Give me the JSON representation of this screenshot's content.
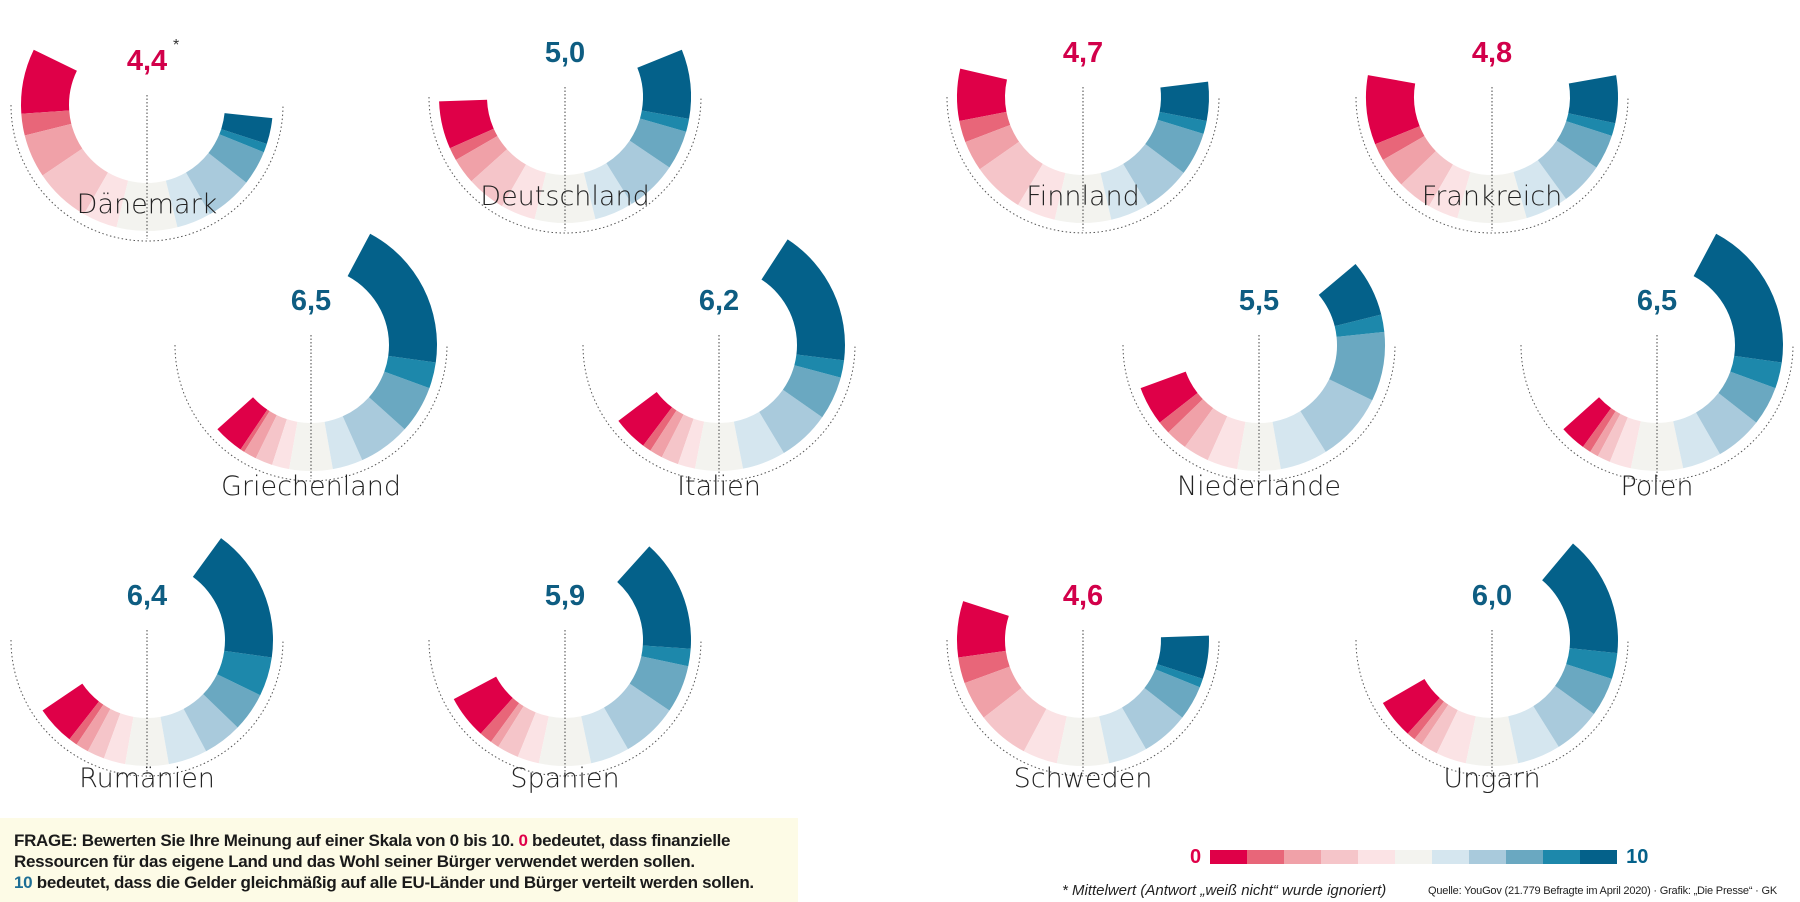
{
  "chart_data": {
    "type": "semi-donut-small-multiples",
    "title": "",
    "scale_min_label": "0",
    "scale_max_label": "10",
    "categories": [
      "0",
      "1",
      "2",
      "3",
      "4",
      "5",
      "6",
      "7",
      "8",
      "9",
      "10"
    ],
    "colors": [
      "#df0048",
      "#e86679",
      "#f0a1a8",
      "#f5c5c9",
      "#fbe3e5",
      "#f3f3ef",
      "#d5e6ef",
      "#a9cadc",
      "#6aa8c1",
      "#1d88ab",
      "#04618a"
    ],
    "mean_color_low": "#d2004a",
    "mean_color_high": "#0e5d82",
    "countries": [
      {
        "name": "Dänemark",
        "mean": "4,4",
        "asterisk": "*",
        "shares": [
          15,
          5,
          10,
          13,
          8,
          14,
          8,
          11,
          8,
          2,
          6
        ]
      },
      {
        "name": "Deutschland",
        "mean": "5,0",
        "asterisk": "",
        "shares": [
          11,
          3,
          6,
          9,
          8,
          14,
          9,
          12,
          9,
          3,
          16
        ]
      },
      {
        "name": "Finnland",
        "mean": "4,7",
        "asterisk": "",
        "shares": [
          12,
          5,
          7,
          12,
          9,
          13,
          9,
          11,
          10,
          3,
          9
        ]
      },
      {
        "name": "Frankreich",
        "mean": "4,8",
        "asterisk": "",
        "shares": [
          16,
          4,
          7,
          8,
          7,
          16,
          10,
          10,
          8,
          3,
          11
        ]
      },
      {
        "name": "Griechenland",
        "mean": "6,5",
        "asterisk": "",
        "shares": [
          7,
          1,
          3,
          4,
          4,
          10,
          7,
          12,
          11,
          6,
          35
        ]
      },
      {
        "name": "Italien",
        "mean": "6,2",
        "asterisk": "",
        "shares": [
          8,
          2,
          3,
          4,
          4,
          11,
          10,
          12,
          10,
          4,
          32
        ]
      },
      {
        "name": "Niederlande",
        "mean": "5,5",
        "asterisk": "",
        "shares": [
          9,
          3,
          5,
          6,
          7,
          10,
          11,
          16,
          16,
          4,
          13
        ]
      },
      {
        "name": "Polen",
        "mean": "6,5",
        "asterisk": "",
        "shares": [
          6,
          2,
          2,
          3,
          5,
          12,
          9,
          11,
          9,
          6,
          35
        ]
      },
      {
        "name": "Rumänien",
        "mean": "6,4",
        "asterisk": "",
        "shares": [
          9,
          2,
          3,
          4,
          5,
          10,
          9,
          9,
          9,
          9,
          31
        ]
      },
      {
        "name": "Spanien",
        "mean": "5,9",
        "asterisk": "",
        "shares": [
          10,
          3,
          2,
          5,
          5,
          12,
          9,
          13,
          11,
          4,
          26
        ]
      },
      {
        "name": "Schweden",
        "mean": "4,6",
        "asterisk": "",
        "shares": [
          13,
          6,
          9,
          12,
          8,
          12,
          9,
          11,
          8,
          2,
          10
        ]
      },
      {
        "name": "Ungarn",
        "mean": "6,0",
        "asterisk": "",
        "shares": [
          9,
          2,
          2,
          4,
          7,
          12,
          10,
          11,
          9,
          6,
          28
        ]
      }
    ]
  },
  "footer": {
    "frage_prefix": "FRAGE: Bewerten Sie Ihre Meinung auf einer Skala von 0 bis 10. ",
    "frage_zero": "0",
    "frage_line1_rest": " bedeutet, dass finanzielle",
    "frage_line2": "Ressourcen für das eigene Land und das Wohl seiner Bürger verwendet werden sollen.",
    "frage_ten": "10",
    "frage_line3_rest": " bedeutet, dass die Gelder gleichmäßig auf alle EU-Länder und Bürger verteilt werden sollen.",
    "legend_min": "0",
    "legend_max": "10",
    "footnote": "* Mittelwert (Antwort „weiß nicht“ wurde ignoriert)",
    "source": "Quelle: YouGov (21.779 Befragte im April 2020) · Grafik: „Die Presse“ · GK"
  }
}
